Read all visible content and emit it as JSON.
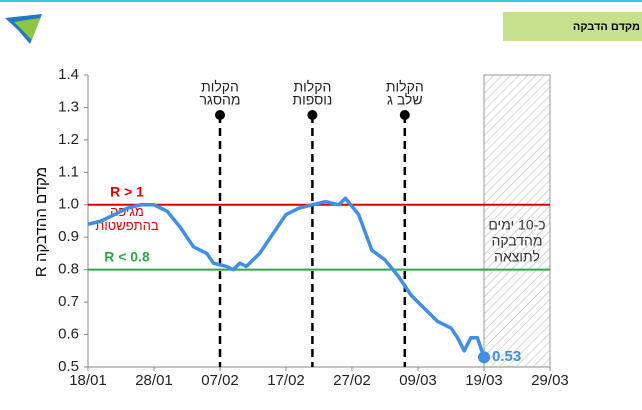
{
  "header": {
    "title": "מקדם הדבקה"
  },
  "chart_data": {
    "type": "line",
    "ylabel": "מקדם ההדבקה R",
    "x": [
      "18/01",
      "20/01",
      "22/01",
      "24/01",
      "26/01",
      "28/01",
      "30/01",
      "01/02",
      "03/02",
      "05/02",
      "06/02",
      "08/02",
      "09/02",
      "10/02",
      "11/02",
      "13/02",
      "15/02",
      "17/02",
      "19/02",
      "21/02",
      "23/02",
      "25/02",
      "26/02",
      "28/02",
      "02/03",
      "04/03",
      "06/03",
      "08/03",
      "10/03",
      "12/03",
      "14/03",
      "15/03",
      "16/03",
      "17/03",
      "18/03",
      "19/03"
    ],
    "series": [
      {
        "color": "#3f8fe8",
        "values": [
          0.94,
          0.95,
          0.97,
          0.99,
          1.0,
          1.0,
          0.98,
          0.93,
          0.87,
          0.85,
          0.82,
          0.81,
          0.8,
          0.82,
          0.81,
          0.85,
          0.91,
          0.97,
          0.99,
          1.0,
          1.01,
          1.0,
          1.02,
          0.97,
          0.86,
          0.83,
          0.78,
          0.72,
          0.68,
          0.64,
          0.62,
          0.59,
          0.55,
          0.59,
          0.59,
          0.53
        ]
      }
    ],
    "end_label": "0.53",
    "xlim": [
      "18/01",
      "29/03"
    ],
    "xticks": [
      "18/01",
      "28/01",
      "07/02",
      "17/02",
      "27/02",
      "09/03",
      "19/03",
      "29/03"
    ],
    "ylim": [
      0.5,
      1.4
    ],
    "yticks": [
      0.5,
      0.6,
      0.7,
      0.8,
      0.9,
      {
        "value": 1,
        "label": "1.0"
      },
      1.1,
      1.2,
      1.3,
      1.4
    ],
    "reference_lines": [
      {
        "value": 1,
        "color": "#e00000",
        "labels": [
          "R > 1",
          "מגיפה",
          "בהתפשטות"
        ]
      },
      {
        "value": 0.8,
        "color": "#2ea84a",
        "labels": [
          "R < 0.8"
        ]
      }
    ],
    "events": [
      {
        "x": "07/02",
        "labels": [
          "הקלות",
          "מהסגר"
        ]
      },
      {
        "x": "21/02",
        "labels": [
          "הקלות",
          "נוספות"
        ]
      },
      {
        "x": "07/03",
        "labels": [
          "הקלות",
          "שלב ג"
        ]
      }
    ],
    "shaded": {
      "from": "19/03",
      "to": "29/03",
      "labels": [
        "כ-10 ימים",
        "מהדבקה",
        "לתוצאה"
      ]
    }
  }
}
